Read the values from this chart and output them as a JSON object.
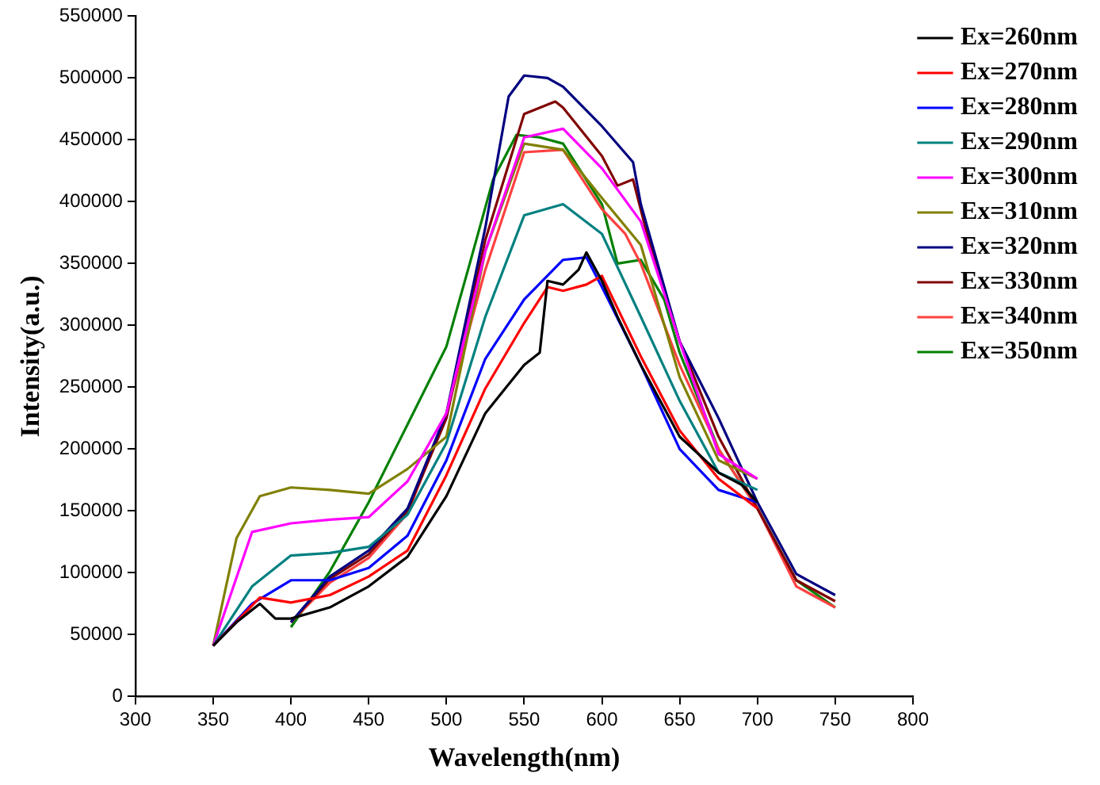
{
  "chart_data": {
    "type": "line",
    "xlabel": "Wavelength(nm)",
    "ylabel": "Intensity(a.u.)",
    "xlim": [
      300,
      800
    ],
    "ylim": [
      0,
      550000
    ],
    "xticks": [
      300,
      350,
      400,
      450,
      500,
      550,
      600,
      650,
      700,
      750,
      800
    ],
    "yticks": [
      0,
      50000,
      100000,
      150000,
      200000,
      250000,
      300000,
      350000,
      400000,
      450000,
      500000,
      550000
    ],
    "grid": false,
    "legend": "top right",
    "marker": "none",
    "line_style": "solid",
    "series": [
      {
        "name": "Ex=260nm",
        "color": "#000000",
        "x": [
          350,
          365,
          380,
          390,
          400,
          425,
          450,
          475,
          500,
          525,
          550,
          560,
          565,
          575,
          585,
          590,
          600,
          610,
          625,
          650,
          675,
          690,
          700
        ],
        "values": [
          41000,
          60000,
          75000,
          63000,
          63000,
          72000,
          89000,
          113000,
          162000,
          229000,
          268000,
          278000,
          336000,
          333000,
          345000,
          359000,
          336000,
          307000,
          268000,
          210000,
          181000,
          171000,
          157000
        ]
      },
      {
        "name": "Ex=270nm",
        "color": "#ff0000",
        "x": [
          350,
          380,
          400,
          425,
          450,
          475,
          500,
          525,
          550,
          565,
          575,
          590,
          600,
          625,
          650,
          675,
          700
        ],
        "values": [
          41000,
          80000,
          76000,
          82000,
          97000,
          118000,
          179000,
          249000,
          302000,
          331000,
          328000,
          333000,
          340000,
          275000,
          215000,
          176000,
          152000
        ]
      },
      {
        "name": "Ex=280nm",
        "color": "#0000ff",
        "x": [
          350,
          375,
          400,
          425,
          450,
          475,
          500,
          525,
          550,
          575,
          590,
          600,
          625,
          650,
          675,
          700
        ],
        "values": [
          41000,
          75000,
          94000,
          94000,
          104000,
          130000,
          191000,
          273000,
          321000,
          353000,
          355000,
          331000,
          268000,
          200000,
          167000,
          157000
        ]
      },
      {
        "name": "Ex=290nm",
        "color": "#008080",
        "x": [
          350,
          375,
          400,
          425,
          450,
          475,
          500,
          525,
          550,
          575,
          600,
          625,
          650,
          675,
          700
        ],
        "values": [
          41000,
          89000,
          114000,
          116000,
          121000,
          147000,
          205000,
          307000,
          389000,
          398000,
          374000,
          307000,
          239000,
          181000,
          167000
        ]
      },
      {
        "name": "Ex=300nm",
        "color": "#ff00ff",
        "x": [
          350,
          375,
          400,
          425,
          450,
          475,
          500,
          525,
          550,
          575,
          600,
          625,
          650,
          675,
          700
        ],
        "values": [
          41000,
          133000,
          140000,
          143000,
          145000,
          174000,
          229000,
          360000,
          452000,
          459000,
          427000,
          384000,
          287000,
          196000,
          176000
        ]
      },
      {
        "name": "Ex=310nm",
        "color": "#808000",
        "x": [
          350,
          365,
          380,
          400,
          425,
          450,
          475,
          500,
          525,
          550,
          575,
          600,
          625,
          650,
          675,
          700
        ],
        "values": [
          41000,
          128000,
          162000,
          169000,
          167000,
          164000,
          184000,
          210000,
          360000,
          447000,
          442000,
          403000,
          365000,
          258000,
          191000,
          176000
        ]
      },
      {
        "name": "Ex=320nm",
        "color": "#000080",
        "x": [
          400,
          425,
          450,
          475,
          500,
          525,
          540,
          550,
          565,
          575,
          600,
          620,
          625,
          650,
          675,
          700,
          725,
          750
        ],
        "values": [
          60000,
          97000,
          118000,
          152000,
          229000,
          379000,
          485000,
          502000,
          500000,
          493000,
          461000,
          432000,
          398000,
          287000,
          225000,
          157000,
          99000,
          82000
        ]
      },
      {
        "name": "Ex=330nm",
        "color": "#800000",
        "x": [
          400,
          425,
          450,
          475,
          500,
          525,
          550,
          570,
          575,
          600,
          610,
          620,
          630,
          650,
          675,
          700,
          725,
          750
        ],
        "values": [
          60000,
          95000,
          115000,
          150000,
          225000,
          369000,
          471000,
          481000,
          476000,
          437000,
          413000,
          418000,
          369000,
          287000,
          210000,
          152000,
          94000,
          77000
        ]
      },
      {
        "name": "Ex=340nm",
        "color": "#ff4040",
        "x": [
          400,
          425,
          450,
          475,
          500,
          525,
          550,
          575,
          600,
          615,
          625,
          650,
          675,
          700,
          725,
          750
        ],
        "values": [
          60000,
          92000,
          112000,
          148000,
          229000,
          345000,
          440000,
          442000,
          394000,
          374000,
          350000,
          268000,
          200000,
          152000,
          89000,
          72000
        ]
      },
      {
        "name": "Ex=350nm",
        "color": "#008000",
        "x": [
          400,
          425,
          450,
          475,
          500,
          515,
          530,
          545,
          560,
          575,
          600,
          610,
          625,
          640,
          650,
          675,
          700,
          725,
          750
        ],
        "values": [
          56000,
          101000,
          157000,
          220000,
          283000,
          350000,
          418000,
          454000,
          452000,
          447000,
          398000,
          350000,
          353000,
          321000,
          278000,
          200000,
          152000,
          94000,
          72000
        ]
      }
    ]
  }
}
